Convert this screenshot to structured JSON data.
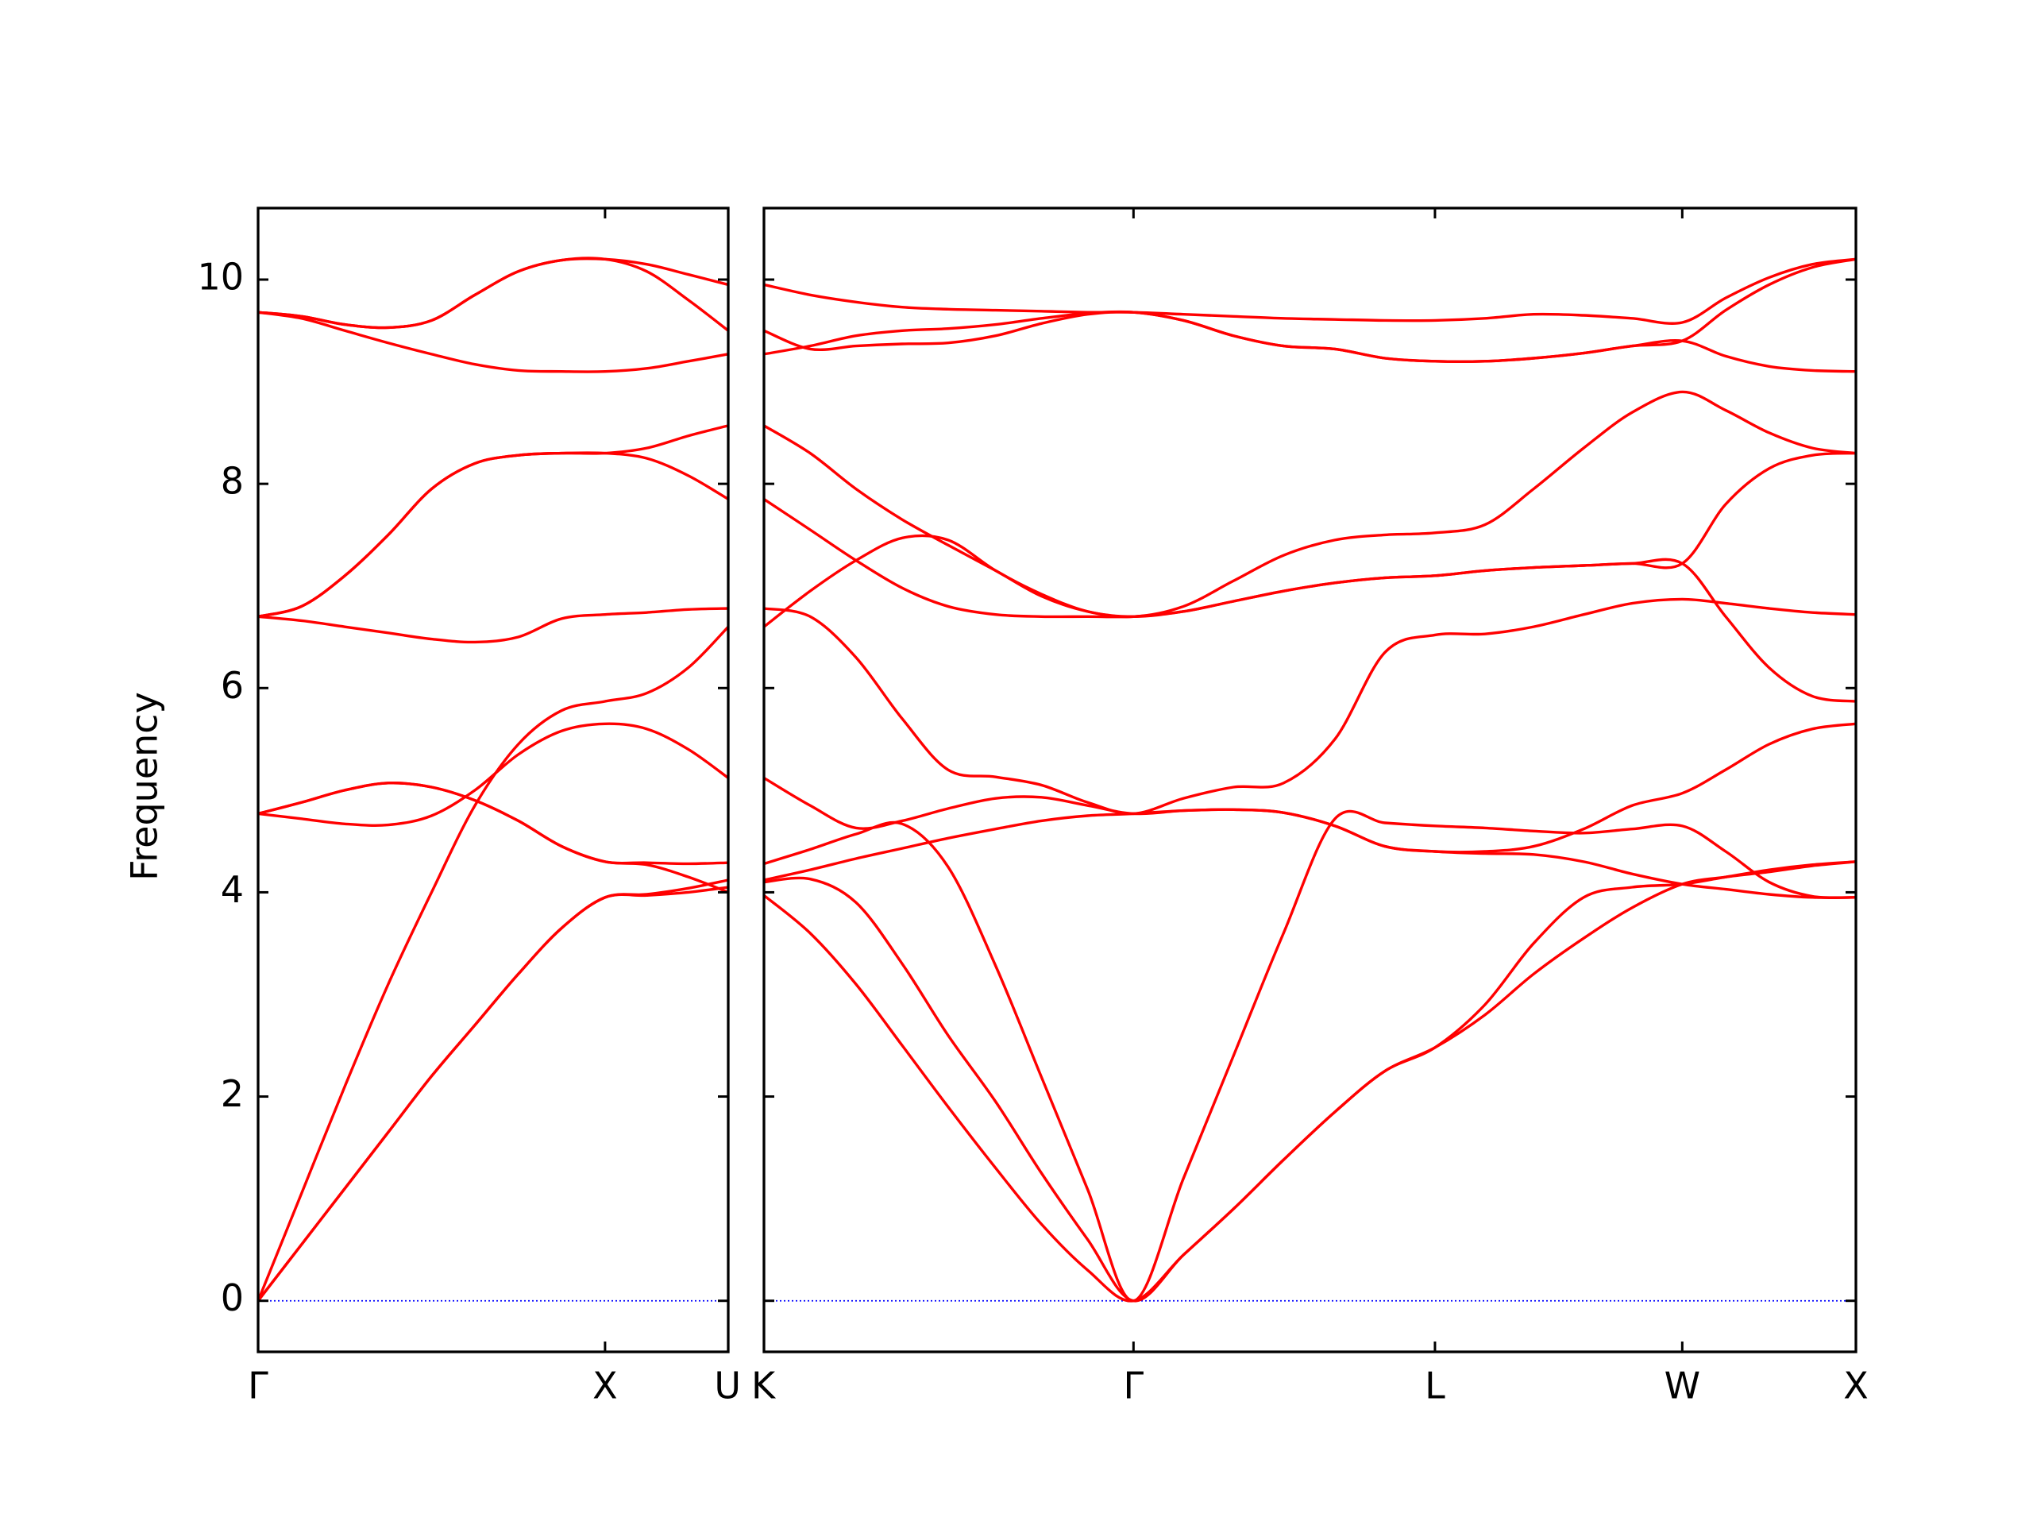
{
  "chart_data": [
    {
      "type": "line",
      "ylabel": "Frequency",
      "color": "#ff0000",
      "xlim": [
        0,
        1.355
      ],
      "ylim": [
        -0.5,
        10.7
      ],
      "xticks": [
        {
          "value": 0,
          "label": "Γ"
        },
        {
          "value": 1,
          "label": "X"
        },
        {
          "value": 1.355,
          "label": "U"
        }
      ],
      "yticks": [
        0,
        2,
        4,
        6,
        8,
        10
      ],
      "show_ytick_labels": true,
      "zero_line": {
        "y": 0,
        "color": "#0000ff",
        "style": "dotted"
      },
      "x": [
        0,
        0.125,
        0.25,
        0.375,
        0.5,
        0.625,
        0.75,
        0.875,
        1,
        1.12,
        1.24,
        1.355
      ],
      "series": [
        {
          "values": [
            0,
            0.55,
            1.1,
            1.65,
            2.2,
            2.7,
            3.2,
            3.65,
            3.95,
            3.97,
            4.0,
            4.05
          ]
        },
        {
          "values": [
            0,
            0.55,
            1.1,
            1.65,
            2.2,
            2.7,
            3.2,
            3.65,
            3.95,
            3.98,
            4.04,
            4.12
          ]
        },
        {
          "values": [
            4.77,
            4.88,
            5.0,
            5.07,
            5.03,
            4.9,
            4.7,
            4.45,
            4.3,
            4.27,
            4.15,
            4.0
          ]
        },
        {
          "values": [
            4.77,
            4.88,
            5.0,
            5.07,
            5.03,
            4.9,
            4.7,
            4.45,
            4.3,
            4.29,
            4.28,
            4.29
          ]
        },
        {
          "values": [
            4.77,
            4.72,
            4.67,
            4.66,
            4.75,
            5.0,
            5.35,
            5.58,
            5.65,
            5.6,
            5.4,
            5.12
          ]
        },
        {
          "values": [
            0,
            1.05,
            2.1,
            3.1,
            4.0,
            4.85,
            5.45,
            5.78,
            5.87,
            5.95,
            6.2,
            6.6
          ]
        },
        {
          "values": [
            6.7,
            6.66,
            6.6,
            6.54,
            6.48,
            6.45,
            6.5,
            6.68,
            6.72,
            6.74,
            6.77,
            6.78
          ]
        },
        {
          "values": [
            6.7,
            6.8,
            7.1,
            7.5,
            7.95,
            8.2,
            8.28,
            8.3,
            8.3,
            8.25,
            8.08,
            7.85
          ]
        },
        {
          "values": [
            6.7,
            6.8,
            7.1,
            7.5,
            7.95,
            8.2,
            8.28,
            8.3,
            8.3,
            8.35,
            8.47,
            8.57
          ]
        },
        {
          "values": [
            9.68,
            9.62,
            9.5,
            9.38,
            9.27,
            9.17,
            9.11,
            9.1,
            9.1,
            9.13,
            9.2,
            9.27
          ]
        },
        {
          "values": [
            9.68,
            9.64,
            9.56,
            9.53,
            9.6,
            9.85,
            10.08,
            10.19,
            10.2,
            10.08,
            9.8,
            9.5
          ]
        },
        {
          "values": [
            9.68,
            9.64,
            9.56,
            9.53,
            9.6,
            9.85,
            10.08,
            10.19,
            10.2,
            10.15,
            10.05,
            9.95
          ]
        }
      ]
    },
    {
      "type": "line",
      "color": "#ff0000",
      "xlim": [
        0,
        3.144
      ],
      "ylim": [
        -0.5,
        10.7
      ],
      "xticks": [
        {
          "value": 0,
          "label": "K"
        },
        {
          "value": 1.064,
          "label": "Γ"
        },
        {
          "value": 1.932,
          "label": "L"
        },
        {
          "value": 2.644,
          "label": "W"
        },
        {
          "value": 3.144,
          "label": "X"
        }
      ],
      "yticks": [
        0,
        2,
        4,
        6,
        8,
        10
      ],
      "show_ytick_labels": false,
      "zero_line": {
        "y": 0,
        "color": "#0000ff",
        "style": "dotted"
      },
      "x": [
        0,
        0.133,
        0.265,
        0.398,
        0.53,
        0.667,
        0.799,
        0.932,
        1.064,
        1.208,
        1.352,
        1.496,
        1.644,
        1.788,
        1.932,
        2.076,
        2.216,
        2.36,
        2.5,
        2.644,
        2.769,
        2.894,
        3.019,
        3.144
      ],
      "series": [
        {
          "values": [
            3.97,
            3.6,
            3.1,
            2.5,
            1.9,
            1.3,
            0.75,
            0.3,
            0,
            0.45,
            0.9,
            1.38,
            1.85,
            2.25,
            2.48,
            2.9,
            3.5,
            3.95,
            4.05,
            4.08,
            4.15,
            4.22,
            4.27,
            4.3
          ]
        },
        {
          "values": [
            4.1,
            4.13,
            3.9,
            3.3,
            2.6,
            1.95,
            1.25,
            0.6,
            0,
            0.45,
            0.9,
            1.38,
            1.85,
            2.25,
            2.48,
            2.8,
            3.2,
            3.55,
            3.85,
            4.08,
            4.15,
            4.2,
            4.26,
            4.3
          ]
        },
        {
          "values": [
            4.12,
            4.22,
            4.33,
            4.43,
            4.53,
            4.62,
            4.7,
            4.75,
            4.77,
            4.8,
            4.81,
            4.78,
            4.65,
            4.45,
            4.4,
            4.38,
            4.37,
            4.3,
            4.18,
            4.08,
            4.03,
            3.98,
            3.95,
            3.95
          ]
        },
        {
          "values": [
            4.28,
            4.42,
            4.57,
            4.67,
            4.25,
            3.28,
            2.19,
            1.09,
            0,
            1.2,
            2.4,
            3.6,
            4.72,
            4.68,
            4.65,
            4.63,
            4.6,
            4.58,
            4.62,
            4.65,
            4.4,
            4.1,
            3.96,
            3.95
          ]
        },
        {
          "values": [
            5.12,
            4.85,
            4.63,
            4.7,
            4.82,
            4.92,
            4.93,
            4.85,
            4.77,
            4.8,
            4.81,
            4.78,
            4.65,
            4.45,
            4.4,
            4.4,
            4.45,
            4.62,
            4.85,
            4.97,
            5.2,
            5.45,
            5.6,
            5.65
          ]
        },
        {
          "values": [
            6.6,
            6.95,
            7.25,
            7.47,
            7.45,
            7.15,
            6.92,
            6.75,
            6.7,
            6.75,
            6.85,
            6.95,
            7.03,
            7.08,
            7.1,
            7.15,
            7.18,
            7.2,
            7.22,
            7.22,
            6.7,
            6.2,
            5.92,
            5.87
          ]
        },
        {
          "values": [
            6.78,
            6.7,
            6.3,
            5.7,
            5.2,
            5.13,
            5.05,
            4.88,
            4.77,
            4.92,
            5.03,
            5.07,
            5.5,
            6.35,
            6.52,
            6.53,
            6.6,
            6.72,
            6.83,
            6.87,
            6.83,
            6.78,
            6.74,
            6.72
          ]
        },
        {
          "values": [
            7.85,
            7.55,
            7.25,
            6.98,
            6.8,
            6.72,
            6.7,
            6.7,
            6.7,
            6.75,
            6.85,
            6.95,
            7.03,
            7.08,
            7.1,
            7.15,
            7.18,
            7.2,
            7.22,
            7.22,
            7.8,
            8.15,
            8.28,
            8.3
          ]
        },
        {
          "values": [
            8.57,
            8.3,
            7.95,
            7.65,
            7.4,
            7.15,
            6.9,
            6.75,
            6.7,
            6.8,
            7.05,
            7.3,
            7.45,
            7.5,
            7.52,
            7.6,
            7.95,
            8.35,
            8.7,
            8.9,
            8.72,
            8.5,
            8.35,
            8.3
          ]
        },
        {
          "values": [
            9.27,
            9.35,
            9.45,
            9.5,
            9.52,
            9.56,
            9.62,
            9.67,
            9.68,
            9.6,
            9.45,
            9.35,
            9.32,
            9.23,
            9.2,
            9.2,
            9.23,
            9.28,
            9.35,
            9.4,
            9.25,
            9.15,
            9.11,
            9.1
          ]
        },
        {
          "values": [
            9.5,
            9.32,
            9.35,
            9.37,
            9.38,
            9.45,
            9.57,
            9.66,
            9.68,
            9.6,
            9.45,
            9.35,
            9.32,
            9.23,
            9.2,
            9.2,
            9.23,
            9.28,
            9.35,
            9.4,
            9.7,
            9.95,
            10.12,
            10.2
          ]
        },
        {
          "values": [
            9.95,
            9.85,
            9.78,
            9.73,
            9.71,
            9.7,
            9.69,
            9.68,
            9.68,
            9.66,
            9.64,
            9.62,
            9.61,
            9.6,
            9.6,
            9.62,
            9.66,
            9.65,
            9.62,
            9.58,
            9.82,
            10.02,
            10.15,
            10.2
          ]
        }
      ]
    }
  ]
}
